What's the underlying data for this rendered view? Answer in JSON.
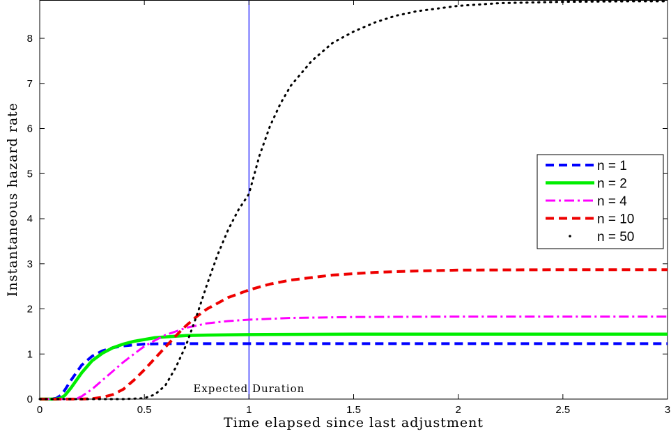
{
  "chart_data": {
    "type": "line",
    "title": "",
    "xlabel": "Time elapsed since last adjustment",
    "ylabel": "Instantaneous hazard rate",
    "xlim": [
      0,
      3
    ],
    "ylim": [
      0,
      8.85
    ],
    "xticks": [
      0,
      0.5,
      1,
      1.5,
      2,
      2.5,
      3
    ],
    "xtick_labels": [
      "0",
      "0.5",
      "1",
      "1.5",
      "2",
      "2.5",
      "3"
    ],
    "yticks": [
      0,
      1,
      2,
      3,
      4,
      5,
      6,
      7,
      8
    ],
    "ytick_labels": [
      "0",
      "1",
      "2",
      "3",
      "4",
      "5",
      "6",
      "7",
      "8"
    ],
    "grid": false,
    "legend_position": "right",
    "vline": {
      "x": 1,
      "color": "#0000ff"
    },
    "annotation": {
      "text": "Expected Duration",
      "x": 1,
      "y": 0.1
    },
    "series": [
      {
        "name": "n = 1",
        "color": "#0000ff",
        "style": "dashed",
        "x": [
          0,
          0.05,
          0.08,
          0.1,
          0.12,
          0.15,
          0.18,
          0.2,
          0.25,
          0.3,
          0.35,
          0.4,
          0.45,
          0.5,
          0.6,
          0.8,
          1,
          1.5,
          2,
          2.5,
          3
        ],
        "y": [
          0,
          0,
          0.02,
          0.08,
          0.2,
          0.42,
          0.62,
          0.75,
          0.95,
          1.07,
          1.14,
          1.18,
          1.2,
          1.22,
          1.23,
          1.23,
          1.23,
          1.23,
          1.23,
          1.23,
          1.23
        ]
      },
      {
        "name": "n = 2",
        "color": "#00ee00",
        "style": "solid",
        "x": [
          0,
          0.08,
          0.1,
          0.12,
          0.15,
          0.18,
          0.2,
          0.25,
          0.3,
          0.35,
          0.4,
          0.45,
          0.5,
          0.55,
          0.6,
          0.7,
          0.8,
          1,
          1.5,
          2,
          2.5,
          3
        ],
        "y": [
          0,
          0,
          0.02,
          0.08,
          0.25,
          0.45,
          0.58,
          0.85,
          1.02,
          1.14,
          1.22,
          1.28,
          1.32,
          1.36,
          1.38,
          1.41,
          1.42,
          1.43,
          1.44,
          1.44,
          1.44,
          1.44
        ]
      },
      {
        "name": "n = 4",
        "color": "#ff00ff",
        "style": "dashdot",
        "x": [
          0,
          0.15,
          0.18,
          0.2,
          0.25,
          0.3,
          0.35,
          0.4,
          0.45,
          0.5,
          0.55,
          0.6,
          0.7,
          0.8,
          0.9,
          1,
          1.2,
          1.5,
          2,
          2.5,
          3
        ],
        "y": [
          0,
          0,
          0.02,
          0.06,
          0.22,
          0.42,
          0.62,
          0.82,
          1.0,
          1.17,
          1.3,
          1.42,
          1.58,
          1.68,
          1.73,
          1.76,
          1.8,
          1.82,
          1.83,
          1.83,
          1.83
        ]
      },
      {
        "name": "n = 10",
        "color": "#ee0000",
        "style": "dashed",
        "x": [
          0,
          0.1,
          0.2,
          0.25,
          0.3,
          0.35,
          0.4,
          0.45,
          0.5,
          0.55,
          0.6,
          0.65,
          0.7,
          0.75,
          0.8,
          0.9,
          1,
          1.1,
          1.2,
          1.4,
          1.6,
          1.8,
          2,
          2.5,
          3
        ],
        "y": [
          0,
          0,
          0,
          0.01,
          0.04,
          0.1,
          0.22,
          0.42,
          0.65,
          0.9,
          1.15,
          1.4,
          1.63,
          1.83,
          2.0,
          2.25,
          2.42,
          2.55,
          2.64,
          2.75,
          2.81,
          2.84,
          2.86,
          2.87,
          2.87
        ]
      },
      {
        "name": "n = 50",
        "color": "#000000",
        "style": "dotted",
        "x": [
          0,
          0.4,
          0.5,
          0.55,
          0.6,
          0.65,
          0.7,
          0.75,
          0.8,
          0.85,
          0.9,
          0.95,
          1,
          1.05,
          1.1,
          1.15,
          1.2,
          1.3,
          1.4,
          1.5,
          1.6,
          1.7,
          1.8,
          2,
          2.2,
          2.5,
          2.8,
          3
        ],
        "y": [
          0,
          0,
          0.02,
          0.1,
          0.3,
          0.7,
          1.2,
          1.85,
          2.55,
          3.2,
          3.75,
          4.2,
          4.55,
          5.4,
          6.05,
          6.55,
          6.95,
          7.5,
          7.9,
          8.15,
          8.35,
          8.5,
          8.6,
          8.72,
          8.78,
          8.81,
          8.82,
          8.82
        ]
      }
    ]
  }
}
